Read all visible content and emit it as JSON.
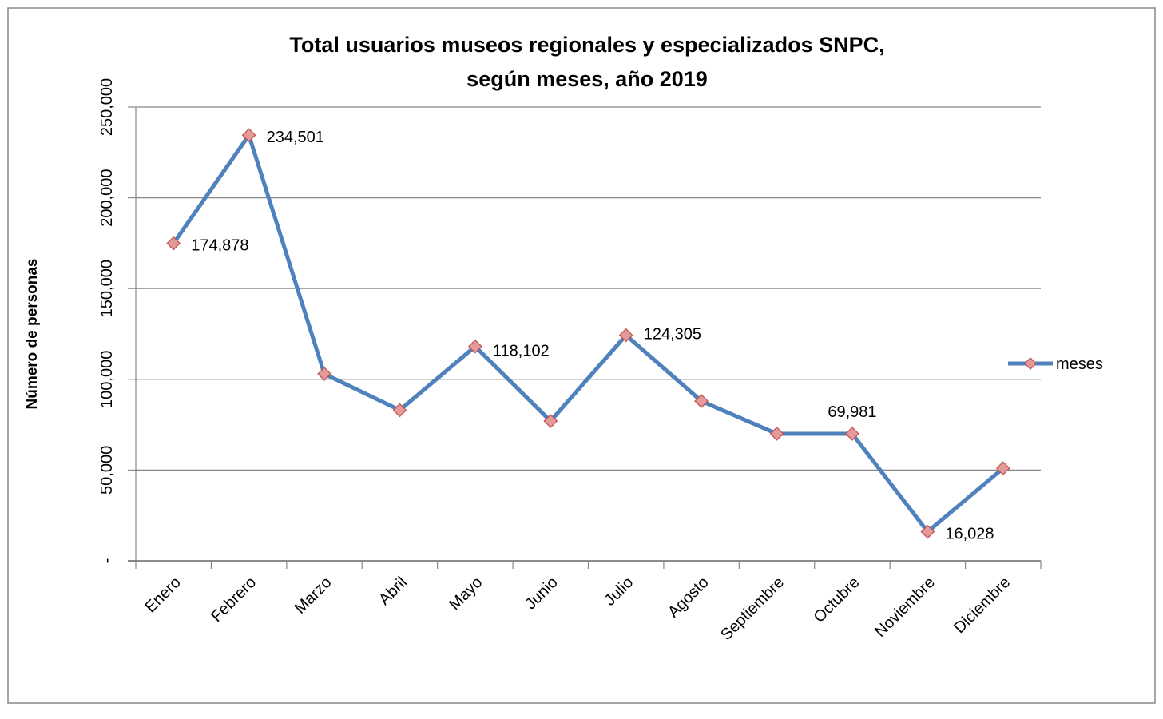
{
  "chart_data": {
    "type": "line",
    "title": [
      "Total usuarios museos regionales y especializados SNPC,",
      "según meses, año 2019"
    ],
    "y_axis_label": "Número de personas",
    "categories": [
      "Enero",
      "Febrero",
      "Marzo",
      "Abril",
      "Mayo",
      "Junio",
      "Julio",
      "Agosto",
      "Septiembre",
      "Octubre",
      "Noviembre",
      "Diciembre"
    ],
    "series": [
      {
        "name": "meses",
        "color": "#4f81bd",
        "marker_color": "#e39a98",
        "marker_edge": "#c0504d",
        "values": [
          174878,
          234501,
          103000,
          83000,
          118102,
          77000,
          124305,
          88000,
          70000,
          69981,
          16028,
          51000
        ],
        "value_labels": [
          "174,878",
          "234,501",
          null,
          null,
          "118,102",
          null,
          "124,305",
          null,
          null,
          "69,981",
          "16,028",
          null
        ]
      }
    ],
    "ylim": [
      0,
      250000
    ],
    "yticks": [
      {
        "value": 0,
        "label": "-"
      },
      {
        "value": 50000,
        "label": "50,000"
      },
      {
        "value": 100000,
        "label": "100,000"
      },
      {
        "value": 150000,
        "label": "150,000"
      },
      {
        "value": 200000,
        "label": "200,000"
      },
      {
        "value": 250000,
        "label": "250,000"
      }
    ],
    "grid": true,
    "legend": "right"
  }
}
